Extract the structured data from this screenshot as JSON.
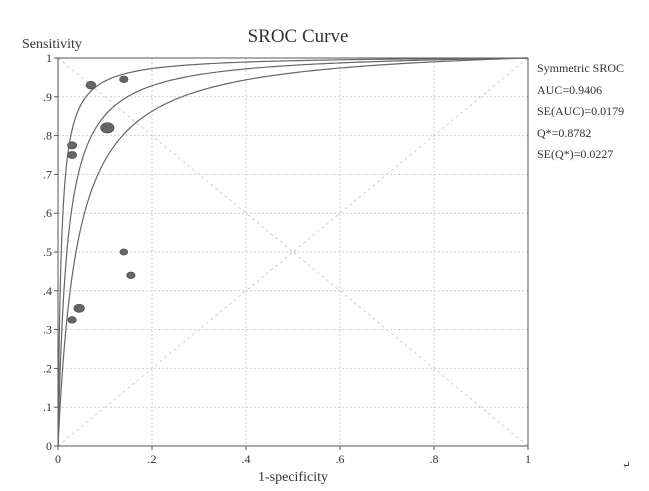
{
  "chart_data": {
    "type": "scatter",
    "title": "SROC Curve",
    "xlabel": "1-specificity",
    "ylabel": "Sensitivity",
    "xlim": [
      0,
      1
    ],
    "ylim": [
      0,
      1
    ],
    "grid": true,
    "x_ticks": [
      {
        "value": 0,
        "label": "0"
      },
      {
        "value": 0.2,
        "label": ".2"
      },
      {
        "value": 0.4,
        "label": ".4"
      },
      {
        "value": 0.6,
        "label": ".6"
      },
      {
        "value": 0.8,
        "label": ".8"
      },
      {
        "value": 1,
        "label": "1"
      }
    ],
    "y_ticks": [
      {
        "value": 0,
        "label": "0"
      },
      {
        "value": 0.1,
        "label": ".1"
      },
      {
        "value": 0.2,
        "label": ".2"
      },
      {
        "value": 0.3,
        "label": ".3"
      },
      {
        "value": 0.4,
        "label": ".4"
      },
      {
        "value": 0.5,
        "label": ".5"
      },
      {
        "value": 0.6,
        "label": ".6"
      },
      {
        "value": 0.7,
        "label": ".7"
      },
      {
        "value": 0.8,
        "label": ".8"
      },
      {
        "value": 0.9,
        "label": ".9"
      },
      {
        "value": 1,
        "label": "1"
      }
    ],
    "studies": [
      {
        "x": 0.07,
        "y": 0.93,
        "weight": 0.7
      },
      {
        "x": 0.14,
        "y": 0.945,
        "weight": 0.5
      },
      {
        "x": 0.105,
        "y": 0.82,
        "weight": 1.2
      },
      {
        "x": 0.03,
        "y": 0.775,
        "weight": 0.6
      },
      {
        "x": 0.03,
        "y": 0.75,
        "weight": 0.6
      },
      {
        "x": 0.14,
        "y": 0.5,
        "weight": 0.4
      },
      {
        "x": 0.155,
        "y": 0.44,
        "weight": 0.5
      },
      {
        "x": 0.045,
        "y": 0.355,
        "weight": 0.8
      },
      {
        "x": 0.03,
        "y": 0.325,
        "weight": 0.5
      }
    ],
    "curves": {
      "sroc_q_star": 0.8782,
      "sroc_q_star_se": 0.0227
    },
    "color": "#666666",
    "grid_color": "#cfcfcf",
    "corner_mark": "↵"
  },
  "stats": {
    "model": "Symmetric SROC",
    "auc": "AUC=0.9406",
    "se_auc": "SE(AUC)=0.0179",
    "q_star": "Q*=0.8782",
    "se_q_star": "SE(Q*)=0.0227"
  }
}
